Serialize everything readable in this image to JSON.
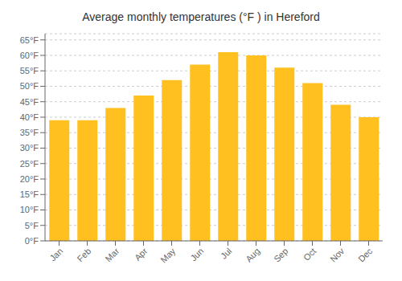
{
  "chart_data": {
    "type": "bar",
    "title": "Average monthly temperatures (°F ) in Hereford",
    "categories": [
      "Jan",
      "Feb",
      "Mar",
      "Apr",
      "May",
      "Jun",
      "Jul",
      "Aug",
      "Sep",
      "Oct",
      "Nov",
      "Dec"
    ],
    "values": [
      39,
      39,
      43,
      47,
      52,
      57,
      61,
      60,
      56,
      51,
      44,
      40
    ],
    "color": "#FFC020",
    "ylim": [
      0,
      67
    ],
    "yticks": [
      {
        "value": 0,
        "label": "0°F"
      },
      {
        "value": 5,
        "label": "5°F"
      },
      {
        "value": 10,
        "label": "10°F"
      },
      {
        "value": 15,
        "label": "15°F"
      },
      {
        "value": 20,
        "label": "20°F"
      },
      {
        "value": 25,
        "label": "25°F"
      },
      {
        "value": 30,
        "label": "30°F"
      },
      {
        "value": 35,
        "label": "35°F"
      },
      {
        "value": 40,
        "label": "40°F"
      },
      {
        "value": 45,
        "label": "45°F"
      },
      {
        "value": 50,
        "label": "50°F"
      },
      {
        "value": 55,
        "label": "55°F"
      },
      {
        "value": 60,
        "label": "60°F"
      },
      {
        "value": 65,
        "label": "65°F"
      }
    ],
    "grid": true
  }
}
